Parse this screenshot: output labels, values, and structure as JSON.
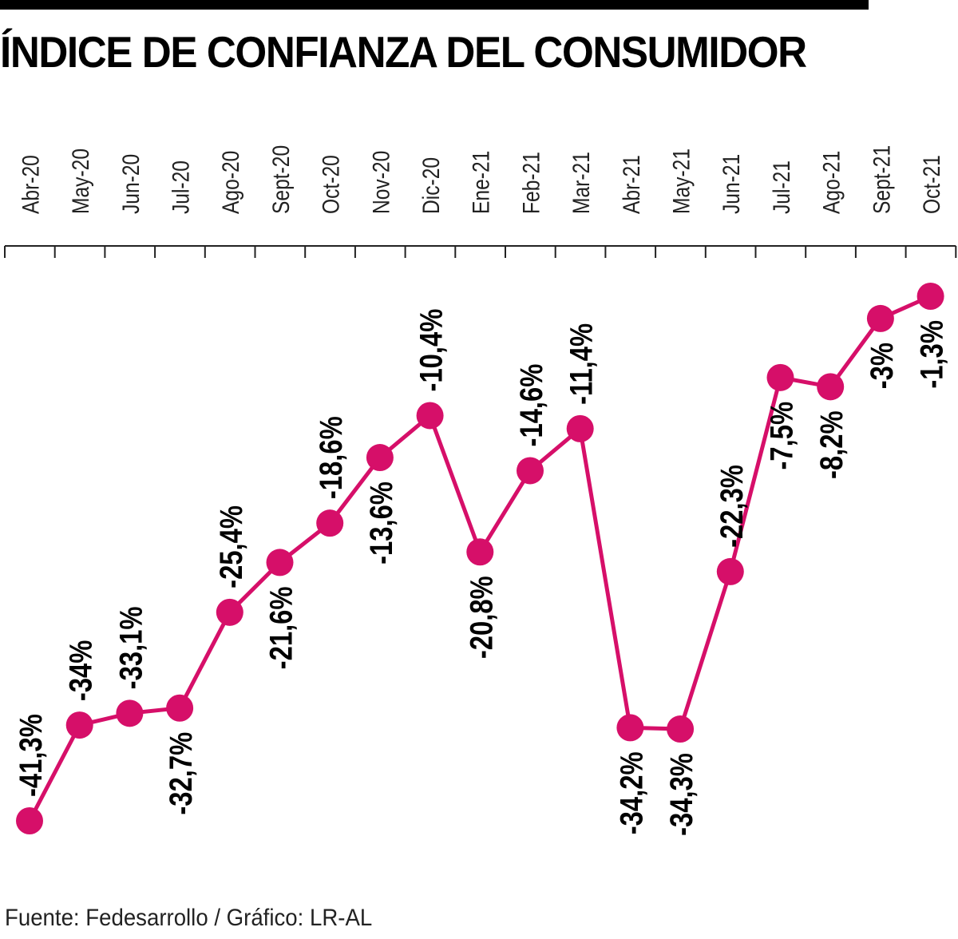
{
  "chart_data": {
    "type": "line",
    "title": "ÍNDICE DE CONFIANZA DEL CONSUMIDOR",
    "source": "Fuente: Fedesarrollo / Gráfico: LR-AL",
    "xlabel": "",
    "ylabel": "",
    "unit": "%",
    "categories": [
      "Abr-20",
      "May-20",
      "Jun-20",
      "Jul-20",
      "Ago-20",
      "Sept-20",
      "Oct-20",
      "Nov-20",
      "Dic-20",
      "Ene-21",
      "Feb-21",
      "Mar-21",
      "Abr-21",
      "May-21",
      "Jun-21",
      "Jul-21",
      "Ago-21",
      "Sept-21",
      "Oct-21"
    ],
    "series": [
      {
        "name": "Índice de confianza del consumidor",
        "values": [
          -41.3,
          -34,
          -33.1,
          -32.7,
          -25.4,
          -21.6,
          -18.6,
          -13.6,
          -10.4,
          -20.8,
          -14.6,
          -11.4,
          -34.2,
          -34.3,
          -22.3,
          -7.5,
          -8.2,
          -3,
          -1.3
        ],
        "labels": [
          "-41,3%",
          "-34%",
          "-33,1%",
          "-32,7%",
          "-25,4%",
          "-21,6%",
          "-18,6%",
          "-13,6%",
          "-10,4%",
          "-20,8%",
          "-14,6%",
          "-11,4%",
          "-34,2%",
          "-34,3%",
          "-22,3%",
          "-7,5%",
          "-8,2%",
          "-3%",
          "-1,3%"
        ],
        "label_positions": [
          "above",
          "above",
          "above",
          "below",
          "above",
          "below",
          "above",
          "below",
          "above",
          "below",
          "above",
          "above",
          "below",
          "below",
          "above",
          "below",
          "below",
          "below",
          "below"
        ]
      }
    ],
    "ylim": [
      -42,
      0
    ],
    "grid": false,
    "legend": "none",
    "colors": {
      "line": "#d60f69",
      "marker": "#d60f69",
      "axis": "#222222",
      "text": "#000000"
    }
  }
}
